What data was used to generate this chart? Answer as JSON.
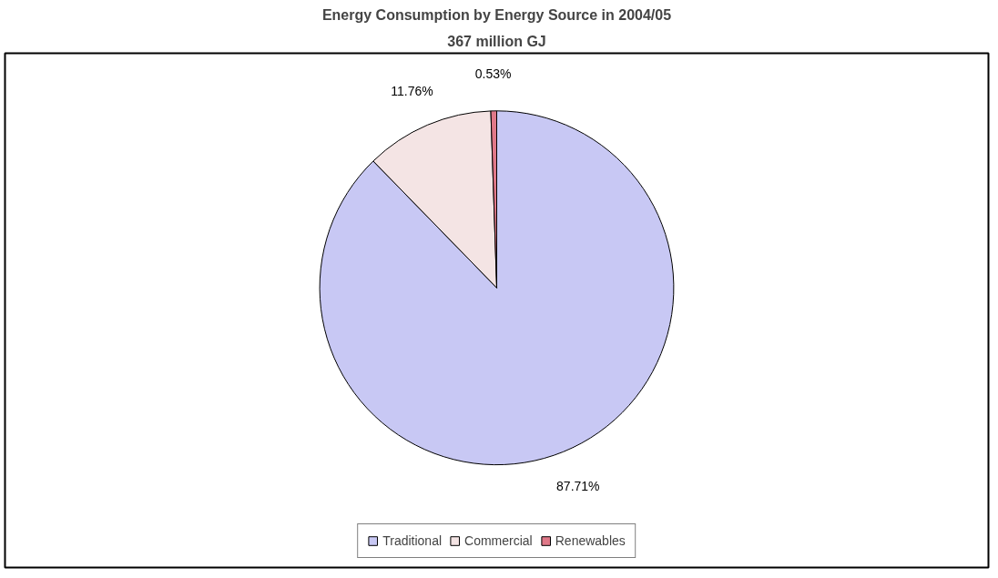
{
  "chart_data": {
    "type": "pie",
    "title": "Energy Consumption by Energy Source in 2004/05",
    "subtitle": "367 million GJ",
    "categories": [
      "Traditional",
      "Commercial",
      "Renewables"
    ],
    "values": [
      87.71,
      11.76,
      0.53
    ],
    "colors": [
      "#c8c8f4",
      "#f4e4e4",
      "#e07888"
    ],
    "value_labels": [
      "87.71%",
      "11.76%",
      "0.53%"
    ],
    "legend": "bottom"
  }
}
